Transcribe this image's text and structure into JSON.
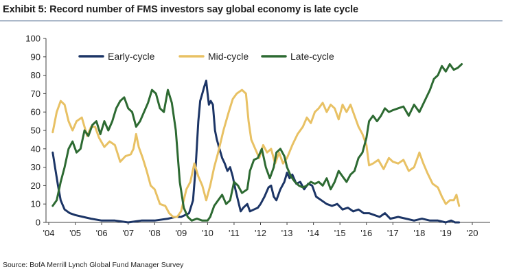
{
  "header": {
    "title": "Exhibit 5: Record number of FMS investors say global economy is late cycle"
  },
  "footer": {
    "source": "Source: BofA Merrill Lynch Global Fund Manager Survey"
  },
  "chart_data": {
    "type": "line",
    "title": "Exhibit 5: Record number of FMS investors say global economy is late cycle",
    "xlabel": "",
    "ylabel": "",
    "xlim": [
      2004,
      2020.5
    ],
    "ylim": [
      0,
      100
    ],
    "x_ticks": [
      2004,
      2005,
      2006,
      2007,
      2008,
      2009,
      2010,
      2011,
      2012,
      2013,
      2014,
      2015,
      2016,
      2017,
      2018,
      2019,
      2020
    ],
    "x_tick_labels": [
      "'04",
      "'05",
      "'06",
      "'07",
      "'08",
      "'09",
      "'10",
      "'11",
      "'12",
      "'13",
      "'14",
      "'15",
      "'16",
      "'17",
      "'18",
      "'19",
      "'20"
    ],
    "y_ticks": [
      0,
      10,
      20,
      30,
      40,
      50,
      60,
      70,
      80,
      90,
      100
    ],
    "y_tick_labels": [
      "0",
      "10",
      "20",
      "30",
      "40",
      "50",
      "60",
      "70",
      "80",
      "90",
      "100"
    ],
    "legend_position": "top-left",
    "series": [
      {
        "name": "Early-cycle",
        "color": "#1c3566",
        "points": [
          [
            2004.15,
            38
          ],
          [
            2004.25,
            29
          ],
          [
            2004.35,
            20
          ],
          [
            2004.45,
            12
          ],
          [
            2004.6,
            7
          ],
          [
            2004.8,
            5
          ],
          [
            2005.0,
            4
          ],
          [
            2005.3,
            3
          ],
          [
            2005.6,
            2
          ],
          [
            2006.0,
            1
          ],
          [
            2006.5,
            1
          ],
          [
            2007.0,
            0
          ],
          [
            2007.5,
            1
          ],
          [
            2008.0,
            1
          ],
          [
            2008.5,
            2
          ],
          [
            2008.8,
            3
          ],
          [
            2009.0,
            3
          ],
          [
            2009.3,
            5
          ],
          [
            2009.45,
            12
          ],
          [
            2009.55,
            30
          ],
          [
            2009.65,
            55
          ],
          [
            2009.72,
            66
          ],
          [
            2009.8,
            70
          ],
          [
            2009.88,
            74
          ],
          [
            2009.95,
            77
          ],
          [
            2010.0,
            70
          ],
          [
            2010.05,
            64
          ],
          [
            2010.12,
            66
          ],
          [
            2010.2,
            64
          ],
          [
            2010.28,
            50
          ],
          [
            2010.35,
            45
          ],
          [
            2010.45,
            40
          ],
          [
            2010.55,
            35
          ],
          [
            2010.65,
            32
          ],
          [
            2010.75,
            28
          ],
          [
            2010.85,
            30
          ],
          [
            2010.95,
            25
          ],
          [
            2011.05,
            18
          ],
          [
            2011.15,
            12
          ],
          [
            2011.25,
            6
          ],
          [
            2011.35,
            8
          ],
          [
            2011.5,
            10
          ],
          [
            2011.6,
            6
          ],
          [
            2011.75,
            7
          ],
          [
            2011.9,
            8
          ],
          [
            2012.0,
            10
          ],
          [
            2012.15,
            14
          ],
          [
            2012.3,
            19
          ],
          [
            2012.4,
            20
          ],
          [
            2012.5,
            14
          ],
          [
            2012.6,
            12
          ],
          [
            2012.75,
            18
          ],
          [
            2012.9,
            22
          ],
          [
            2013.0,
            27
          ],
          [
            2013.1,
            24
          ],
          [
            2013.2,
            26
          ],
          [
            2013.35,
            21
          ],
          [
            2013.5,
            22
          ],
          [
            2013.65,
            18
          ],
          [
            2013.8,
            21
          ],
          [
            2013.95,
            20
          ],
          [
            2014.1,
            14
          ],
          [
            2014.3,
            12
          ],
          [
            2014.5,
            10
          ],
          [
            2014.7,
            9
          ],
          [
            2014.9,
            10
          ],
          [
            2015.1,
            7
          ],
          [
            2015.3,
            8
          ],
          [
            2015.5,
            6
          ],
          [
            2015.7,
            7
          ],
          [
            2015.9,
            5
          ],
          [
            2016.1,
            5
          ],
          [
            2016.3,
            4
          ],
          [
            2016.5,
            3
          ],
          [
            2016.7,
            5
          ],
          [
            2016.9,
            2
          ],
          [
            2017.2,
            3
          ],
          [
            2017.5,
            2
          ],
          [
            2017.8,
            1
          ],
          [
            2018.1,
            2
          ],
          [
            2018.4,
            1
          ],
          [
            2018.7,
            1
          ],
          [
            2019.0,
            0
          ],
          [
            2019.2,
            1
          ],
          [
            2019.35,
            0
          ],
          [
            2019.5,
            0
          ]
        ]
      },
      {
        "name": "Mid-cycle",
        "color": "#e8c164",
        "points": [
          [
            2004.15,
            49
          ],
          [
            2004.3,
            60
          ],
          [
            2004.45,
            66
          ],
          [
            2004.6,
            64
          ],
          [
            2004.75,
            55
          ],
          [
            2004.9,
            50
          ],
          [
            2005.05,
            55
          ],
          [
            2005.25,
            57
          ],
          [
            2005.45,
            47
          ],
          [
            2005.6,
            52
          ],
          [
            2005.75,
            52
          ],
          [
            2005.9,
            46
          ],
          [
            2006.1,
            41
          ],
          [
            2006.3,
            44
          ],
          [
            2006.5,
            42
          ],
          [
            2006.7,
            33
          ],
          [
            2006.9,
            36
          ],
          [
            2007.1,
            37
          ],
          [
            2007.2,
            40
          ],
          [
            2007.3,
            48
          ],
          [
            2007.4,
            41
          ],
          [
            2007.55,
            35
          ],
          [
            2007.7,
            28
          ],
          [
            2007.85,
            20
          ],
          [
            2008.0,
            18
          ],
          [
            2008.2,
            10
          ],
          [
            2008.4,
            9
          ],
          [
            2008.55,
            5
          ],
          [
            2008.7,
            3
          ],
          [
            2008.85,
            3
          ],
          [
            2009.0,
            6
          ],
          [
            2009.2,
            18
          ],
          [
            2009.35,
            22
          ],
          [
            2009.5,
            32
          ],
          [
            2009.65,
            25
          ],
          [
            2009.8,
            20
          ],
          [
            2009.95,
            12
          ],
          [
            2010.1,
            20
          ],
          [
            2010.25,
            30
          ],
          [
            2010.4,
            38
          ],
          [
            2010.6,
            50
          ],
          [
            2010.8,
            60
          ],
          [
            2010.95,
            67
          ],
          [
            2011.1,
            70
          ],
          [
            2011.3,
            72
          ],
          [
            2011.45,
            70
          ],
          [
            2011.55,
            55
          ],
          [
            2011.65,
            45
          ],
          [
            2011.8,
            40
          ],
          [
            2011.95,
            35
          ],
          [
            2012.1,
            42
          ],
          [
            2012.25,
            38
          ],
          [
            2012.4,
            40
          ],
          [
            2012.55,
            32
          ],
          [
            2012.7,
            38
          ],
          [
            2012.85,
            32
          ],
          [
            2013.0,
            35
          ],
          [
            2013.2,
            42
          ],
          [
            2013.4,
            48
          ],
          [
            2013.6,
            52
          ],
          [
            2013.75,
            57
          ],
          [
            2013.9,
            54
          ],
          [
            2014.05,
            60
          ],
          [
            2014.2,
            62
          ],
          [
            2014.35,
            65
          ],
          [
            2014.5,
            60
          ],
          [
            2014.65,
            64
          ],
          [
            2014.8,
            62
          ],
          [
            2014.95,
            56
          ],
          [
            2015.1,
            64
          ],
          [
            2015.25,
            60
          ],
          [
            2015.4,
            64
          ],
          [
            2015.55,
            58
          ],
          [
            2015.7,
            52
          ],
          [
            2015.85,
            48
          ],
          [
            2016.0,
            42
          ],
          [
            2016.1,
            31
          ],
          [
            2016.25,
            32
          ],
          [
            2016.45,
            34
          ],
          [
            2016.65,
            29
          ],
          [
            2016.85,
            35
          ],
          [
            2017.0,
            33
          ],
          [
            2017.2,
            32
          ],
          [
            2017.4,
            34
          ],
          [
            2017.6,
            28
          ],
          [
            2017.8,
            30
          ],
          [
            2018.0,
            38
          ],
          [
            2018.15,
            32
          ],
          [
            2018.3,
            27
          ],
          [
            2018.5,
            21
          ],
          [
            2018.7,
            19
          ],
          [
            2018.85,
            14
          ],
          [
            2019.0,
            10
          ],
          [
            2019.15,
            12
          ],
          [
            2019.3,
            12
          ],
          [
            2019.4,
            15
          ],
          [
            2019.5,
            9
          ]
        ]
      },
      {
        "name": "Late-cycle",
        "color": "#2d6a32",
        "points": [
          [
            2004.15,
            9
          ],
          [
            2004.3,
            12
          ],
          [
            2004.45,
            22
          ],
          [
            2004.6,
            30
          ],
          [
            2004.75,
            40
          ],
          [
            2004.9,
            44
          ],
          [
            2005.05,
            38
          ],
          [
            2005.2,
            40
          ],
          [
            2005.35,
            50
          ],
          [
            2005.5,
            47
          ],
          [
            2005.65,
            53
          ],
          [
            2005.8,
            55
          ],
          [
            2005.95,
            48
          ],
          [
            2006.1,
            55
          ],
          [
            2006.25,
            50
          ],
          [
            2006.4,
            55
          ],
          [
            2006.55,
            62
          ],
          [
            2006.7,
            66
          ],
          [
            2006.85,
            68
          ],
          [
            2007.0,
            62
          ],
          [
            2007.15,
            60
          ],
          [
            2007.3,
            52
          ],
          [
            2007.45,
            55
          ],
          [
            2007.6,
            60
          ],
          [
            2007.75,
            65
          ],
          [
            2007.9,
            72
          ],
          [
            2008.05,
            70
          ],
          [
            2008.2,
            62
          ],
          [
            2008.35,
            60
          ],
          [
            2008.5,
            72
          ],
          [
            2008.65,
            65
          ],
          [
            2008.8,
            50
          ],
          [
            2008.95,
            22
          ],
          [
            2009.1,
            8
          ],
          [
            2009.25,
            3
          ],
          [
            2009.4,
            1
          ],
          [
            2009.6,
            2
          ],
          [
            2009.8,
            1
          ],
          [
            2010.0,
            1
          ],
          [
            2010.1,
            3
          ],
          [
            2010.25,
            9
          ],
          [
            2010.4,
            12
          ],
          [
            2010.55,
            15
          ],
          [
            2010.7,
            10
          ],
          [
            2010.85,
            12
          ],
          [
            2011.0,
            22
          ],
          [
            2011.15,
            20
          ],
          [
            2011.3,
            16
          ],
          [
            2011.5,
            18
          ],
          [
            2011.6,
            28
          ],
          [
            2011.75,
            34
          ],
          [
            2011.9,
            35
          ],
          [
            2012.05,
            40
          ],
          [
            2012.2,
            30
          ],
          [
            2012.35,
            24
          ],
          [
            2012.5,
            30
          ],
          [
            2012.6,
            38
          ],
          [
            2012.75,
            40
          ],
          [
            2012.9,
            36
          ],
          [
            2013.0,
            30
          ],
          [
            2013.15,
            25
          ],
          [
            2013.3,
            22
          ],
          [
            2013.45,
            20
          ],
          [
            2013.6,
            19
          ],
          [
            2013.75,
            20
          ],
          [
            2013.9,
            22
          ],
          [
            2014.05,
            21
          ],
          [
            2014.2,
            22
          ],
          [
            2014.35,
            20
          ],
          [
            2014.5,
            24
          ],
          [
            2014.65,
            18
          ],
          [
            2014.8,
            22
          ],
          [
            2014.95,
            28
          ],
          [
            2015.1,
            25
          ],
          [
            2015.25,
            22
          ],
          [
            2015.4,
            26
          ],
          [
            2015.55,
            28
          ],
          [
            2015.7,
            35
          ],
          [
            2015.85,
            38
          ],
          [
            2016.0,
            46
          ],
          [
            2016.1,
            55
          ],
          [
            2016.25,
            58
          ],
          [
            2016.4,
            55
          ],
          [
            2016.55,
            58
          ],
          [
            2016.7,
            62
          ],
          [
            2016.85,
            60
          ],
          [
            2017.0,
            61
          ],
          [
            2017.2,
            62
          ],
          [
            2017.4,
            63
          ],
          [
            2017.6,
            58
          ],
          [
            2017.8,
            64
          ],
          [
            2018.0,
            60
          ],
          [
            2018.2,
            66
          ],
          [
            2018.4,
            72
          ],
          [
            2018.55,
            78
          ],
          [
            2018.7,
            80
          ],
          [
            2018.85,
            85
          ],
          [
            2019.0,
            82
          ],
          [
            2019.15,
            86
          ],
          [
            2019.3,
            83
          ],
          [
            2019.45,
            84
          ],
          [
            2019.6,
            86
          ]
        ]
      }
    ]
  }
}
